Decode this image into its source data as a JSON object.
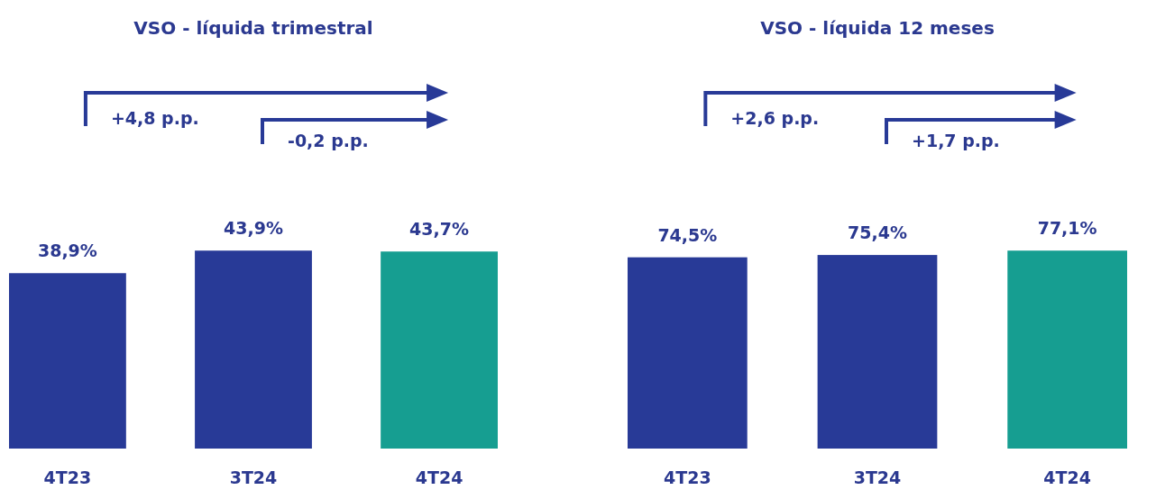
{
  "chart_data": [
    {
      "type": "bar",
      "title": "VSO - líquida trimestral",
      "categories": [
        "4T23",
        "3T24",
        "4T24"
      ],
      "values": [
        38.9,
        43.9,
        43.7
      ],
      "colors": [
        "#283a97",
        "#283a97",
        "#169e91"
      ],
      "value_labels": [
        "38,9%",
        "43,9%",
        "43,7%"
      ],
      "tick_labels": "x",
      "annotations": [
        "+4,8 p.p.",
        "-0,2 p.p."
      ]
    },
    {
      "type": "bar",
      "title": "VSO - líquida 12 meses",
      "categories": [
        "4T23",
        "3T24",
        "4T24"
      ],
      "values": [
        74.5,
        75.4,
        77.1
      ],
      "colors": [
        "#283a97",
        "#283a97",
        "#169e91"
      ],
      "value_labels": [
        "74,5%",
        "75,4%",
        "77,1%"
      ],
      "tick_labels": "x",
      "annotations": [
        "+2,6 p.p.",
        "+1,7 p.p."
      ]
    }
  ]
}
